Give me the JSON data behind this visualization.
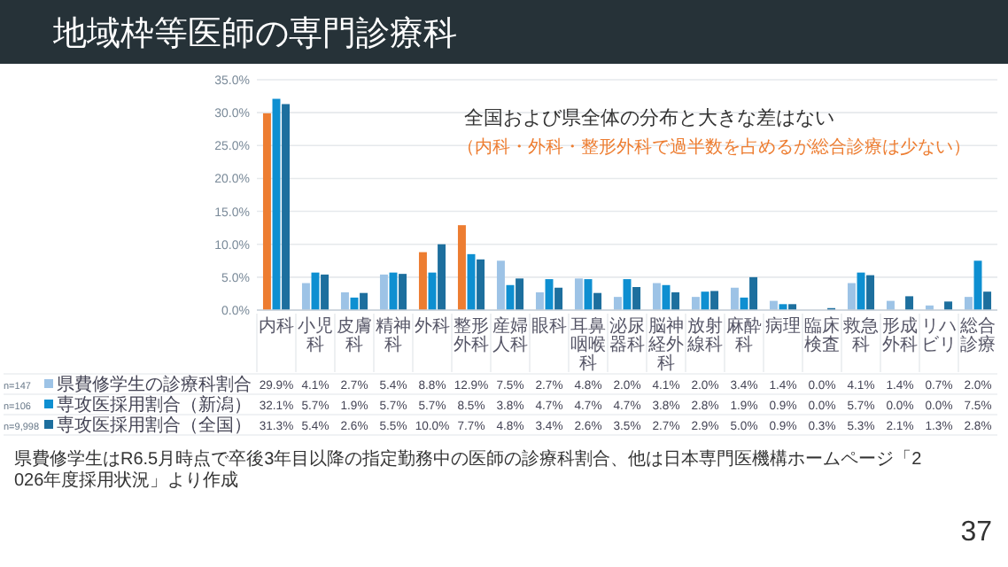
{
  "chart_data": {
    "type": "bar",
    "title": "地域枠等医師の専門診療科",
    "categories": [
      "内科",
      "小児科",
      "皮膚科",
      "精神科",
      "外科",
      "整形外科",
      "産婦人科",
      "眼科",
      "耳鼻咽喉科",
      "泌尿器科",
      "脳神経外科",
      "放射線科",
      "麻酔科",
      "病理",
      "臨床検査",
      "救急科",
      "形成外科",
      "リハビリ",
      "総合診療"
    ],
    "series": [
      {
        "name": "県費修学生の診療科割合",
        "value_labels": [
          "29.9%",
          "4.1%",
          "2.7%",
          "5.4%",
          "8.8%",
          "12.9%",
          "7.5%",
          "2.7%",
          "4.8%",
          "2.0%",
          "4.1%",
          "2.0%",
          "3.4%",
          "1.4%",
          "0.0%",
          "4.1%",
          "1.4%",
          "0.7%",
          "2.0%"
        ],
        "color": "#9dc3e6",
        "colors": [
          "#ed7d31",
          "#9dc3e6",
          "#9dc3e6",
          "#9dc3e6",
          "#ed7d31",
          "#ed7d31",
          "#9dc3e6",
          "#9dc3e6",
          "#9dc3e6",
          "#9dc3e6",
          "#9dc3e6",
          "#9dc3e6",
          "#9dc3e6",
          "#9dc3e6",
          "#9dc3e6",
          "#9dc3e6",
          "#9dc3e6",
          "#9dc3e6",
          "#9dc3e6"
        ],
        "values": [
          29.9,
          4.1,
          2.7,
          5.4,
          8.8,
          12.9,
          7.5,
          2.7,
          4.8,
          2.0,
          4.1,
          2.0,
          3.4,
          1.4,
          0.0,
          4.1,
          1.4,
          0.7,
          2.0
        ]
      },
      {
        "name": "専攻医採用割合（新潟）",
        "value_labels": [
          "32.1%",
          "5.7%",
          "1.9%",
          "5.7%",
          "5.7%",
          "8.5%",
          "3.8%",
          "4.7%",
          "4.7%",
          "4.7%",
          "3.8%",
          "2.8%",
          "1.9%",
          "0.9%",
          "0.0%",
          "5.7%",
          "0.0%",
          "0.0%",
          "7.5%"
        ],
        "color": "#0e8fd1",
        "values": [
          32.1,
          5.7,
          1.9,
          5.7,
          5.7,
          8.5,
          3.8,
          4.7,
          4.7,
          4.7,
          3.8,
          2.8,
          1.9,
          0.9,
          0.0,
          5.7,
          0.0,
          0.0,
          7.5
        ]
      },
      {
        "name": "専攻医採用割合（全国）",
        "value_labels": [
          "31.3%",
          "5.4%",
          "2.6%",
          "5.5%",
          "10.0%",
          "7.7%",
          "4.8%",
          "3.4%",
          "2.6%",
          "3.5%",
          "2.7%",
          "2.9%",
          "5.0%",
          "0.9%",
          "0.3%",
          "5.3%",
          "2.1%",
          "1.3%",
          "2.8%"
        ],
        "color": "#1d6f9e",
        "values": [
          31.3,
          5.4,
          2.6,
          5.5,
          10.0,
          7.7,
          4.8,
          3.4,
          2.6,
          3.5,
          2.7,
          2.9,
          5.0,
          0.9,
          0.3,
          5.3,
          2.1,
          1.3,
          2.8
        ]
      }
    ],
    "ylim": [
      0,
      35
    ],
    "yticks": [
      {
        "value": 0,
        "label": "0.0%"
      },
      {
        "value": 5,
        "label": "5.0%"
      },
      {
        "value": 10,
        "label": "10.0%"
      },
      {
        "value": 15,
        "label": "15.0%"
      },
      {
        "value": 20,
        "label": "20.0%"
      },
      {
        "value": 25,
        "label": "25.0%"
      },
      {
        "value": 30,
        "label": "30.0%"
      },
      {
        "value": 35,
        "label": "35.0%"
      }
    ],
    "grid": "y",
    "legend": "bottom",
    "annotations": [
      "全国および県全体の分布と大きな差はない",
      "（内科・外科・整形外科で過半数を占めるが総合診療は少ない）",
      "県費修学生はR6.5月時点で卒後3年目以降の指定勤務中の医師の診療科割合、他は日本専門医機構ホームページ「2026年度採用状況」より作成",
      "37",
      "n=147",
      "n=106",
      "n=9,998"
    ]
  }
}
